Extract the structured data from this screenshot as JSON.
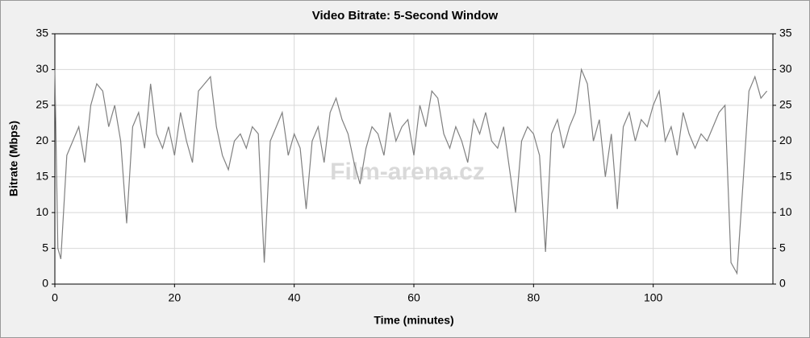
{
  "chart_data": {
    "type": "line",
    "title": "Video Bitrate: 5-Second Window",
    "x_label": "Time (minutes)",
    "y_label": "Bitrate (Mbps)",
    "watermark": "Film-arena.cz",
    "color": "#808080",
    "grid": true,
    "x": [
      0,
      0.5,
      1,
      2,
      3,
      4,
      5,
      6,
      7,
      8,
      9,
      10,
      11,
      12,
      13,
      14,
      15,
      16,
      17,
      18,
      19,
      20,
      21,
      22,
      23,
      24,
      25,
      26,
      27,
      28,
      29,
      30,
      31,
      32,
      33,
      34,
      35,
      36,
      37,
      38,
      39,
      40,
      41,
      42,
      43,
      44,
      45,
      46,
      47,
      48,
      49,
      50,
      51,
      52,
      53,
      54,
      55,
      56,
      57,
      58,
      59,
      60,
      61,
      62,
      63,
      64,
      65,
      66,
      67,
      68,
      69,
      70,
      71,
      72,
      73,
      74,
      75,
      76,
      77,
      78,
      79,
      80,
      81,
      82,
      83,
      84,
      85,
      86,
      87,
      88,
      89,
      90,
      91,
      92,
      93,
      94,
      95,
      96,
      97,
      98,
      99,
      100,
      101,
      102,
      103,
      104,
      105,
      106,
      107,
      108,
      109,
      110,
      111,
      112,
      113,
      114,
      115,
      116,
      117,
      118,
      119
    ],
    "values": [
      30,
      5,
      3.5,
      18,
      20,
      22,
      17,
      25,
      28,
      27,
      22,
      25,
      20,
      8.5,
      22,
      24,
      19,
      28,
      21,
      19,
      22,
      18,
      24,
      20,
      17,
      27,
      28,
      29,
      22,
      18,
      16,
      20,
      21,
      19,
      22,
      21,
      3,
      20,
      22,
      24,
      18,
      21,
      19,
      10.5,
      20,
      22,
      17,
      24,
      26,
      23,
      21,
      17,
      14,
      19,
      22,
      21,
      18,
      24,
      20,
      22,
      23,
      18,
      25,
      22,
      27,
      26,
      21,
      19,
      22,
      20,
      17,
      23,
      21,
      24,
      20,
      19,
      22,
      16,
      10,
      20,
      22,
      21,
      18,
      4.5,
      21,
      23,
      19,
      22,
      24,
      30,
      28,
      20,
      23,
      15,
      21,
      10.5,
      22,
      24,
      20,
      23,
      22,
      25,
      27,
      20,
      22,
      18,
      24,
      21,
      19,
      21,
      20,
      22,
      24,
      25,
      3,
      1.5,
      14,
      27,
      29,
      26,
      27
    ],
    "xlim": [
      0,
      120
    ],
    "xticks": [
      0,
      20,
      40,
      60,
      80,
      100
    ],
    "ylim": [
      0,
      35
    ],
    "yticks": [
      0,
      5,
      10,
      15,
      20,
      25,
      30,
      35
    ],
    "y2lim": [
      0,
      35
    ],
    "y2ticks": [
      0,
      5,
      10,
      15,
      20,
      25,
      30,
      35
    ]
  }
}
